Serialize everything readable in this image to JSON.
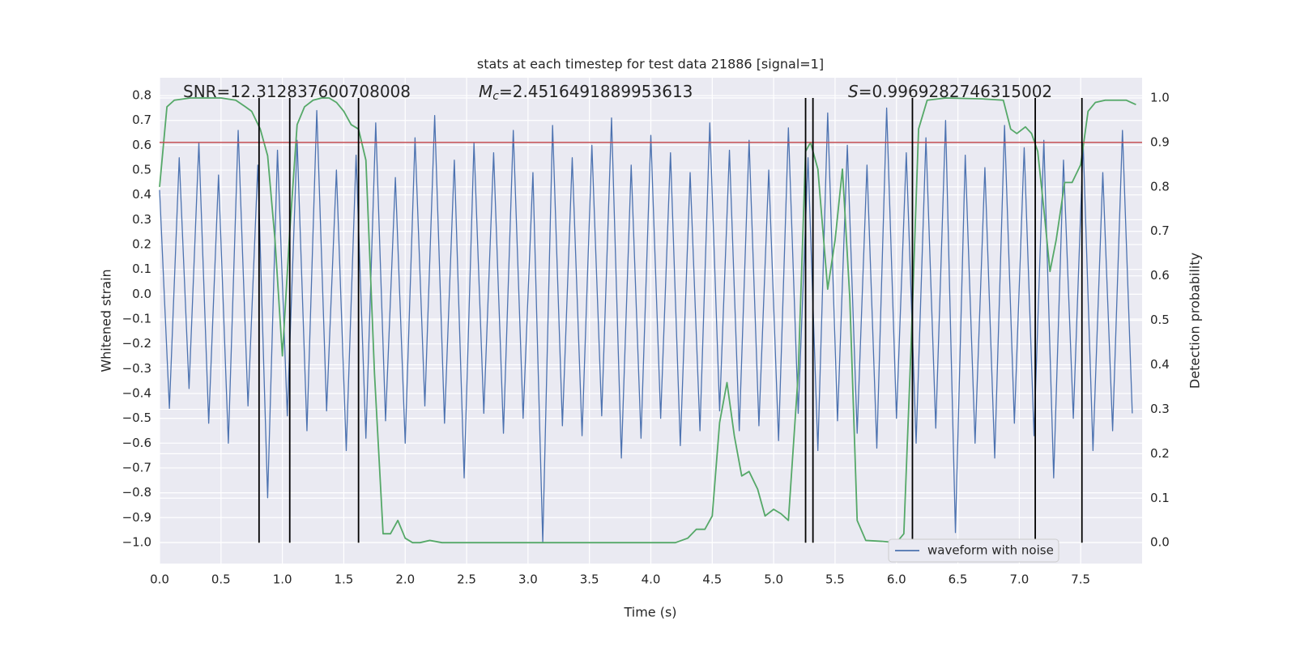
{
  "chart_data": {
    "type": "line",
    "title": "stats at each timestep for test data 21886 [signal=1]",
    "xlabel": "Time (s)",
    "ylabel": "Whitened strain",
    "y2label": "Detection probability",
    "xlim": [
      0,
      8.0
    ],
    "ylim": [
      -1.085,
      0.872
    ],
    "y2lim": [
      -0.047,
      1.0455
    ],
    "xticks": [
      {
        "value": 0,
        "label": "0.0"
      },
      0.5,
      {
        "value": 1,
        "label": "1.0"
      },
      1.5,
      {
        "value": 2,
        "label": "2.0"
      },
      2.5,
      {
        "value": 3,
        "label": "3.0"
      },
      3.5,
      {
        "value": 4,
        "label": "4.0"
      },
      4.5,
      {
        "value": 5,
        "label": "5.0"
      },
      5.5,
      {
        "value": 6,
        "label": "6.0"
      },
      6.5,
      {
        "value": 7,
        "label": "7.0"
      },
      7.5
    ],
    "yticks": [
      {
        "value": -1,
        "label": "−1.0"
      },
      {
        "value": -0.9,
        "label": "−0.9"
      },
      {
        "value": -0.8,
        "label": "−0.8"
      },
      {
        "value": -0.7,
        "label": "−0.7"
      },
      {
        "value": -0.6,
        "label": "−0.6"
      },
      {
        "value": -0.5,
        "label": "−0.5"
      },
      {
        "value": -0.4,
        "label": "−0.4"
      },
      {
        "value": -0.3,
        "label": "−0.3"
      },
      {
        "value": -0.2,
        "label": "−0.2"
      },
      {
        "value": -0.1,
        "label": "−0.1"
      },
      {
        "value": 0,
        "label": "0.0"
      },
      0.1,
      0.2,
      0.3,
      0.4,
      0.5,
      0.6,
      0.7,
      0.8
    ],
    "y2ticks": [
      {
        "value": 0,
        "label": "0.0"
      },
      0.1,
      0.2,
      0.3,
      0.4,
      0.5,
      0.6,
      0.7,
      0.8,
      0.9,
      {
        "value": 1,
        "label": "1.0"
      }
    ],
    "grid": true,
    "legend": "lower right",
    "annotations": [
      {
        "text": "SNR=12.312837600708008"
      },
      {
        "symbol": "M",
        "subscript": "c",
        "text": "=2.4516491889953613"
      },
      {
        "symbol": "S",
        "text": "=0.9969282746315002"
      }
    ],
    "series": [
      {
        "name": "waveform with noise",
        "color": "#4c72b0",
        "x": [
          0,
          0.08,
          0.16,
          0.24,
          0.32,
          0.4,
          0.48,
          0.56,
          0.64,
          0.72,
          0.8,
          0.88,
          0.96,
          1.04,
          1.12,
          1.2,
          1.28,
          1.36,
          1.44,
          1.52,
          1.6,
          1.68,
          1.76,
          1.84,
          1.92,
          2.0,
          2.08,
          2.16,
          2.24,
          2.32,
          2.4,
          2.48,
          2.56,
          2.64,
          2.72,
          2.8,
          2.88,
          2.96,
          3.04,
          3.12,
          3.2,
          3.28,
          3.36,
          3.44,
          3.52,
          3.6,
          3.68,
          3.76,
          3.84,
          3.92,
          4.0,
          4.08,
          4.16,
          4.24,
          4.32,
          4.4,
          4.48,
          4.56,
          4.64,
          4.72,
          4.8,
          4.88,
          4.96,
          5.04,
          5.12,
          5.2,
          5.28,
          5.36,
          5.44,
          5.52,
          5.6,
          5.68,
          5.76,
          5.84,
          5.92,
          6.0,
          6.08,
          6.16,
          6.24,
          6.32,
          6.4,
          6.48,
          6.56,
          6.64,
          6.72,
          6.8,
          6.88,
          6.96,
          7.04,
          7.12,
          7.2,
          7.28,
          7.36,
          7.44,
          7.52,
          7.6,
          7.68,
          7.76,
          7.84,
          7.92
        ],
        "values": [
          0.42,
          -0.46,
          0.55,
          -0.38,
          0.61,
          -0.52,
          0.48,
          -0.6,
          0.66,
          -0.45,
          0.52,
          -0.82,
          0.58,
          -0.49,
          0.62,
          -0.55,
          0.74,
          -0.47,
          0.5,
          -0.63,
          0.56,
          -0.58,
          0.69,
          -0.51,
          0.47,
          -0.6,
          0.63,
          -0.45,
          0.72,
          -0.52,
          0.54,
          -0.74,
          0.61,
          -0.48,
          0.57,
          -0.56,
          0.66,
          -0.5,
          0.49,
          -1.0,
          0.68,
          -0.53,
          0.55,
          -0.57,
          0.6,
          -0.49,
          0.71,
          -0.66,
          0.52,
          -0.58,
          0.64,
          -0.5,
          0.57,
          -0.61,
          0.49,
          -0.55,
          0.69,
          -0.47,
          0.58,
          -0.55,
          0.62,
          -0.53,
          0.5,
          -0.59,
          0.67,
          -0.48,
          0.55,
          -0.63,
          0.73,
          -0.51,
          0.6,
          -0.56,
          0.52,
          -0.62,
          0.75,
          -0.5,
          0.57,
          -0.6,
          0.63,
          -0.54,
          0.7,
          -0.96,
          0.56,
          -0.6,
          0.51,
          -0.66,
          0.68,
          -0.52,
          0.59,
          -0.57,
          0.62,
          -0.74,
          0.54,
          -0.5,
          0.61,
          -0.63,
          0.49,
          -0.55,
          0.66,
          -0.48
        ]
      },
      {
        "color": "#55a868",
        "axis": "y2",
        "x": [
          0.0,
          0.06,
          0.12,
          0.25,
          0.5,
          0.62,
          0.7,
          0.75,
          0.82,
          0.88,
          0.94,
          1.0,
          1.06,
          1.12,
          1.18,
          1.25,
          1.32,
          1.38,
          1.44,
          1.5,
          1.56,
          1.62,
          1.68,
          1.75,
          1.82,
          1.88,
          1.94,
          2.0,
          2.06,
          2.12,
          2.2,
          2.3,
          2.45,
          2.6,
          3.0,
          3.5,
          4.0,
          4.2,
          4.3,
          4.37,
          4.44,
          4.5,
          4.56,
          4.62,
          4.68,
          4.74,
          4.8,
          4.87,
          4.93,
          5.0,
          5.06,
          5.12,
          5.2,
          5.26,
          5.3,
          5.36,
          5.44,
          5.5,
          5.56,
          5.62,
          5.68,
          5.75,
          5.88,
          6.0,
          6.06,
          6.12,
          6.18,
          6.25,
          6.4,
          6.7,
          6.87,
          6.93,
          6.98,
          7.05,
          7.1,
          7.15,
          7.2,
          7.25,
          7.3,
          7.37,
          7.43,
          7.5,
          7.56,
          7.62,
          7.7,
          7.87,
          7.95
        ],
        "values": [
          0.8,
          0.98,
          0.995,
          1.0,
          1.0,
          0.995,
          0.98,
          0.97,
          0.93,
          0.87,
          0.68,
          0.42,
          0.7,
          0.94,
          0.98,
          0.995,
          1.0,
          1.0,
          0.99,
          0.97,
          0.94,
          0.93,
          0.86,
          0.38,
          0.02,
          0.02,
          0.05,
          0.01,
          0.0,
          0.0,
          0.005,
          0.0,
          0.0,
          0.0,
          0.0,
          0.0,
          0.0,
          0.0,
          0.01,
          0.03,
          0.03,
          0.06,
          0.27,
          0.36,
          0.24,
          0.15,
          0.16,
          0.12,
          0.06,
          0.075,
          0.065,
          0.05,
          0.38,
          0.88,
          0.9,
          0.84,
          0.57,
          0.68,
          0.84,
          0.55,
          0.05,
          0.005,
          0.003,
          0.0,
          0.02,
          0.45,
          0.93,
          0.995,
          1.0,
          0.998,
          0.995,
          0.93,
          0.92,
          0.935,
          0.92,
          0.88,
          0.75,
          0.61,
          0.68,
          0.81,
          0.81,
          0.85,
          0.97,
          0.99,
          0.995,
          0.995,
          0.985
        ]
      }
    ],
    "hlines": [
      {
        "y": 0.9,
        "axis": "y2",
        "color": "#c44e52"
      }
    ],
    "vlines": {
      "x": [
        0.81,
        1.06,
        1.62,
        5.26,
        5.32,
        6.13,
        7.13,
        7.51
      ],
      "span": [
        0,
        1
      ],
      "axis": "y2",
      "color": "#000000"
    }
  }
}
